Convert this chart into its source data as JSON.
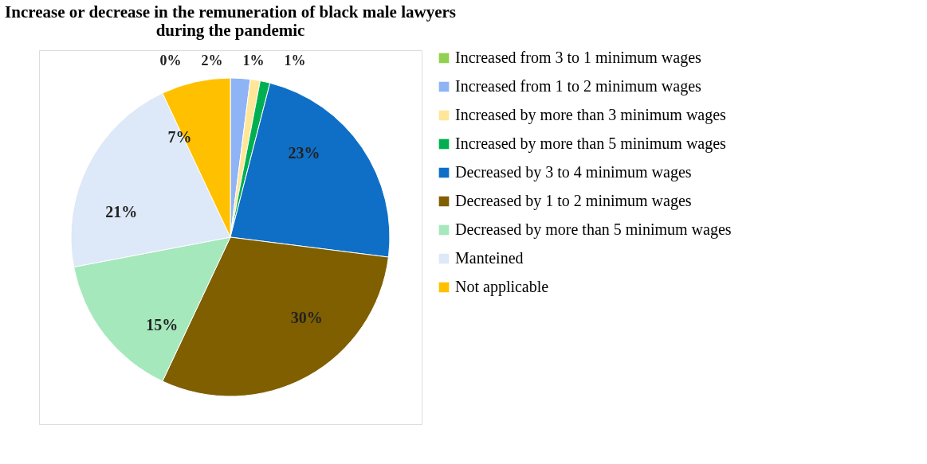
{
  "chart_data": {
    "type": "pie",
    "title": "Increase or decrease in the remuneration of black male lawyers\nduring the pandemic",
    "categories": [
      "Increased from 3 to 1 minimum wages",
      "Increased from 1 to 2 minimum wages",
      "Increased by more than 3 minimum wages",
      "Increased by more than 5 minimum wages",
      "Decreased by 3 to 4 minimum wages",
      "Decreased by 1 to 2 minimum wages",
      "Decreased by more than 5 minimum wages",
      "Manteined",
      "Not applicable"
    ],
    "values": [
      0,
      2,
      1,
      1,
      23,
      30,
      15,
      21,
      7
    ],
    "colors": [
      "#92d050",
      "#8fb4f5",
      "#ffe699",
      "#00b050",
      "#0f6fc6",
      "#7f5f00",
      "#a5e8bc",
      "#dde8f8",
      "#ffc000"
    ],
    "value_labels": [
      "0%",
      "2%",
      "1%",
      "1%",
      "23%",
      "30%",
      "15%",
      "21%",
      "7%"
    ],
    "legend": "right"
  }
}
